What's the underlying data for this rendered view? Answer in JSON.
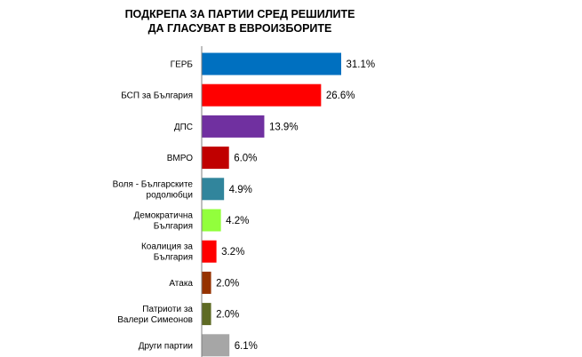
{
  "chart_data": {
    "type": "bar",
    "orientation": "horizontal",
    "title_lines": [
      "ПОДКРЕПА ЗА ПАРТИИ СРЕД РЕШИЛИТЕ",
      "ДА ГЛАСУВАТ В ЕВРОИЗБОРИТЕ"
    ],
    "categories": [
      [
        "ГЕРБ"
      ],
      [
        "БСП за България"
      ],
      [
        "ДПС"
      ],
      [
        "ВМРО"
      ],
      [
        "Воля - Българските",
        "родолюбци"
      ],
      [
        "Демократична",
        "България"
      ],
      [
        "Коалиция за",
        "България"
      ],
      [
        "Атака"
      ],
      [
        "Патриоти за",
        "Валери Симеонов"
      ],
      [
        "Други партии"
      ]
    ],
    "values": [
      31.1,
      26.6,
      13.9,
      6.0,
      4.9,
      4.2,
      3.2,
      2.0,
      2.0,
      6.1
    ],
    "value_labels": [
      "31.1%",
      "26.6%",
      "13.9%",
      "6.0%",
      "4.9%",
      "4.2%",
      "3.2%",
      "2.0%",
      "2.0%",
      "6.1%"
    ],
    "colors": [
      "#0070C0",
      "#FF0000",
      "#7030A0",
      "#C00000",
      "#31859C",
      "#92FF3C",
      "#FF0000",
      "#953200",
      "#5E6A24",
      "#A6A6A6"
    ],
    "xlim": [
      0,
      35
    ],
    "axis_line": true,
    "grid": false,
    "legend": "none"
  }
}
